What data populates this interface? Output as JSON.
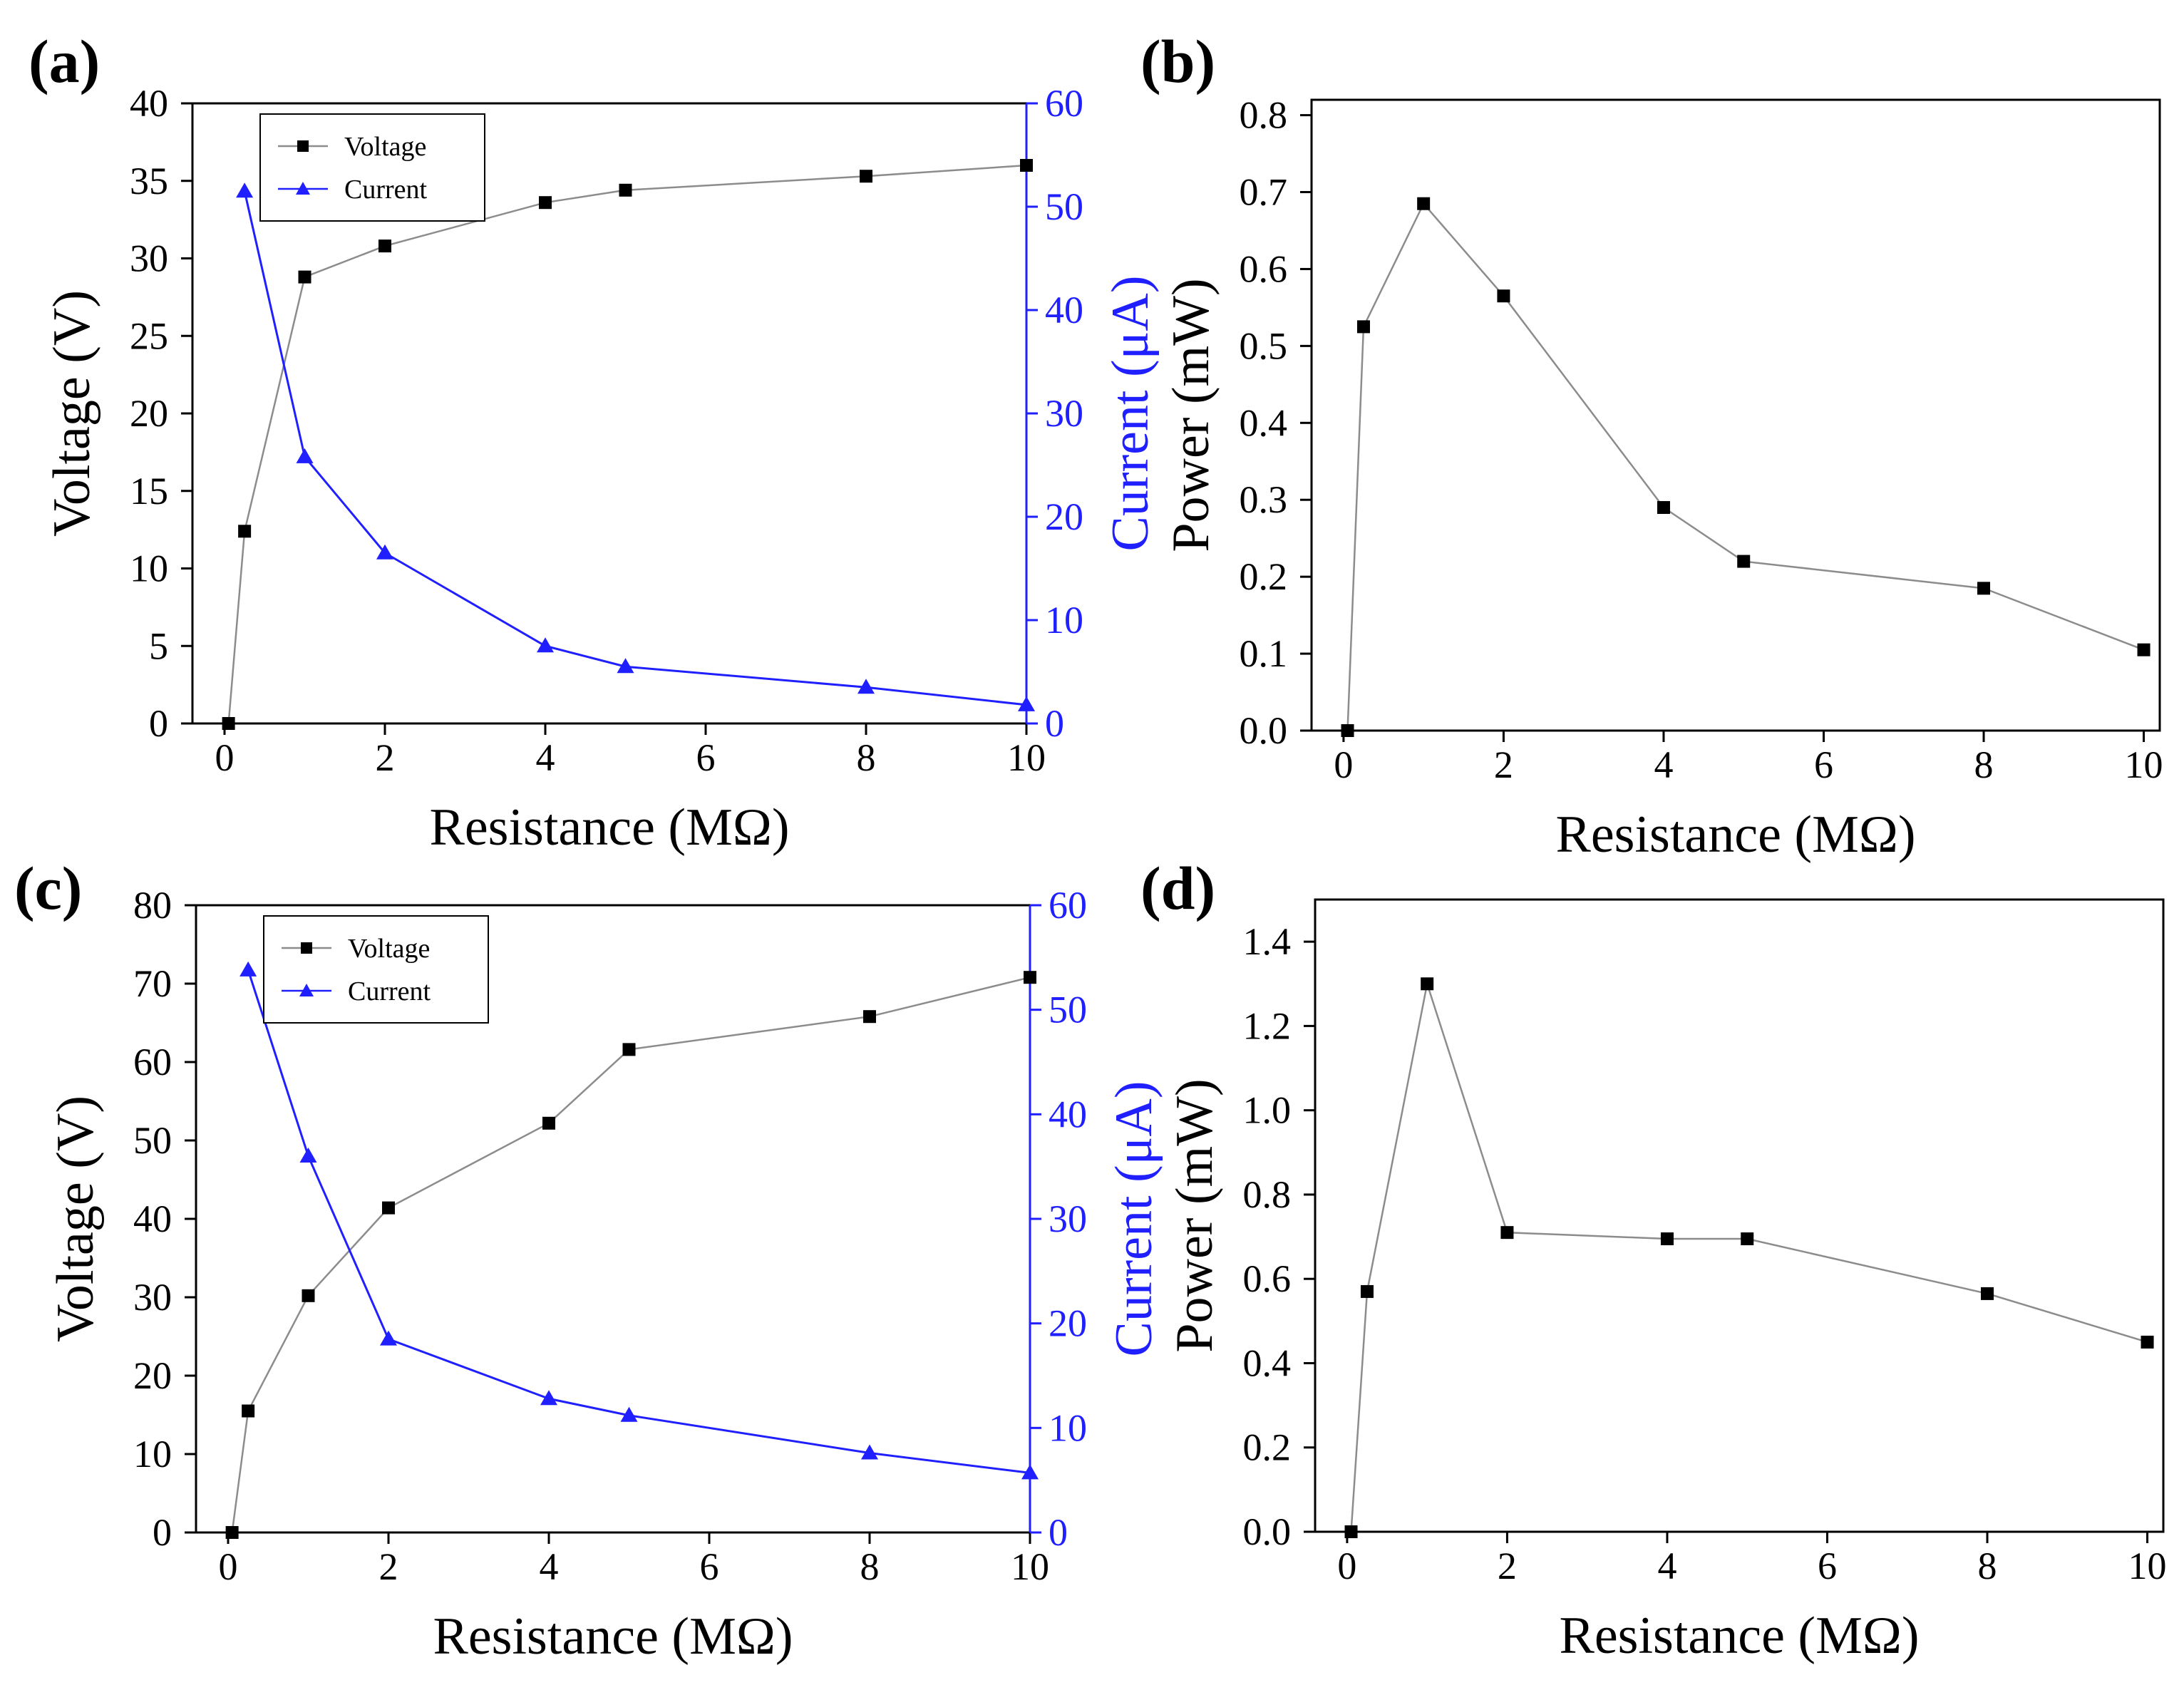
{
  "colors": {
    "voltage": "#000000",
    "voltage_line": "#8c8c8c",
    "current": "#1f1fff",
    "power": "#000000",
    "power_line": "#8c8c8c"
  },
  "chart_data": [
    {
      "id": "a",
      "panel_label": "(a)",
      "type": "line",
      "xlabel": "Resistance (MΩ)",
      "ylabel": "Voltage (V)",
      "y2label": "Current (μA)",
      "xlim": [
        -0.4,
        10
      ],
      "ylim": [
        0,
        40
      ],
      "y2lim": [
        0,
        60
      ],
      "xticks": [
        0,
        2,
        4,
        6,
        8,
        10
      ],
      "yticks": [
        0,
        5,
        10,
        15,
        20,
        25,
        30,
        35,
        40
      ],
      "y2ticks": [
        0,
        10,
        20,
        30,
        40,
        50,
        60
      ],
      "legend": {
        "placement": "top-left",
        "entries": [
          "Voltage",
          "Current"
        ]
      },
      "grid": false,
      "series": [
        {
          "name": "Voltage",
          "axis": "left",
          "marker": "square",
          "x": [
            0.05,
            0.25,
            1,
            2,
            4,
            5,
            8,
            10
          ],
          "y": [
            0,
            12.4,
            28.8,
            30.8,
            33.6,
            34.4,
            35.3,
            36.0
          ]
        },
        {
          "name": "Current",
          "axis": "right",
          "marker": "triangle",
          "x": [
            0.25,
            1,
            2,
            4,
            5,
            8,
            10
          ],
          "y": [
            51.5,
            25.8,
            16.5,
            7.5,
            5.5,
            3.5,
            1.8
          ]
        }
      ]
    },
    {
      "id": "b",
      "panel_label": "(b)",
      "type": "line",
      "xlabel": "Resistance (MΩ)",
      "ylabel": "Power (mW)",
      "xlim": [
        -0.4,
        10.2
      ],
      "ylim": [
        0,
        0.82
      ],
      "xticks": [
        0,
        2,
        4,
        6,
        8,
        10
      ],
      "yticks": [
        0.0,
        0.1,
        0.2,
        0.3,
        0.4,
        0.5,
        0.6,
        0.7,
        0.8
      ],
      "ytick_labels": [
        "0.0",
        "0.1",
        "0.2",
        "0.3",
        "0.4",
        "0.5",
        "0.6",
        "0.7",
        "0.8"
      ],
      "grid": false,
      "series": [
        {
          "marker": "square",
          "x": [
            0.05,
            0.25,
            1,
            2,
            4,
            5,
            8,
            10
          ],
          "y": [
            0,
            0.525,
            0.685,
            0.565,
            0.29,
            0.22,
            0.185,
            0.105
          ]
        }
      ]
    },
    {
      "id": "c",
      "panel_label": "(c)",
      "type": "line",
      "xlabel": "Resistance (MΩ)",
      "ylabel": "Voltage (V)",
      "y2label": "Current (μA)",
      "xlim": [
        -0.4,
        10
      ],
      "ylim": [
        0,
        80
      ],
      "y2lim": [
        0,
        60
      ],
      "xticks": [
        0,
        2,
        4,
        6,
        8,
        10
      ],
      "yticks": [
        0,
        10,
        20,
        30,
        40,
        50,
        60,
        70,
        80
      ],
      "y2ticks": [
        0,
        10,
        20,
        30,
        40,
        50,
        60
      ],
      "legend": {
        "placement": "top-left",
        "entries": [
          "Voltage",
          "Current"
        ]
      },
      "grid": false,
      "series": [
        {
          "name": "Voltage",
          "axis": "left",
          "marker": "square",
          "x": [
            0.05,
            0.25,
            1,
            2,
            4,
            5,
            8,
            10
          ],
          "y": [
            0,
            15.5,
            30.2,
            41.4,
            52.2,
            61.6,
            65.8,
            70.8
          ]
        },
        {
          "name": "Current",
          "axis": "right",
          "marker": "triangle",
          "x": [
            0.25,
            1,
            2,
            4,
            5,
            8,
            10
          ],
          "y": [
            53.8,
            36.0,
            18.5,
            12.8,
            11.2,
            7.6,
            5.7
          ]
        }
      ]
    },
    {
      "id": "d",
      "panel_label": "(d)",
      "type": "line",
      "xlabel": "Resistance (MΩ)",
      "ylabel": "Power (mW)",
      "xlim": [
        -0.4,
        10.2
      ],
      "ylim": [
        0,
        1.5
      ],
      "xticks": [
        0,
        2,
        4,
        6,
        8,
        10
      ],
      "yticks": [
        0.0,
        0.2,
        0.4,
        0.6,
        0.8,
        1.0,
        1.2,
        1.4
      ],
      "ytick_labels": [
        "0.0",
        "0.2",
        "0.4",
        "0.6",
        "0.8",
        "1.0",
        "1.2",
        "1.4"
      ],
      "grid": false,
      "series": [
        {
          "marker": "square",
          "x": [
            0.05,
            0.25,
            1,
            2,
            4,
            5,
            8,
            10
          ],
          "y": [
            0,
            0.57,
            1.3,
            0.71,
            0.695,
            0.695,
            0.565,
            0.45
          ]
        }
      ]
    }
  ]
}
